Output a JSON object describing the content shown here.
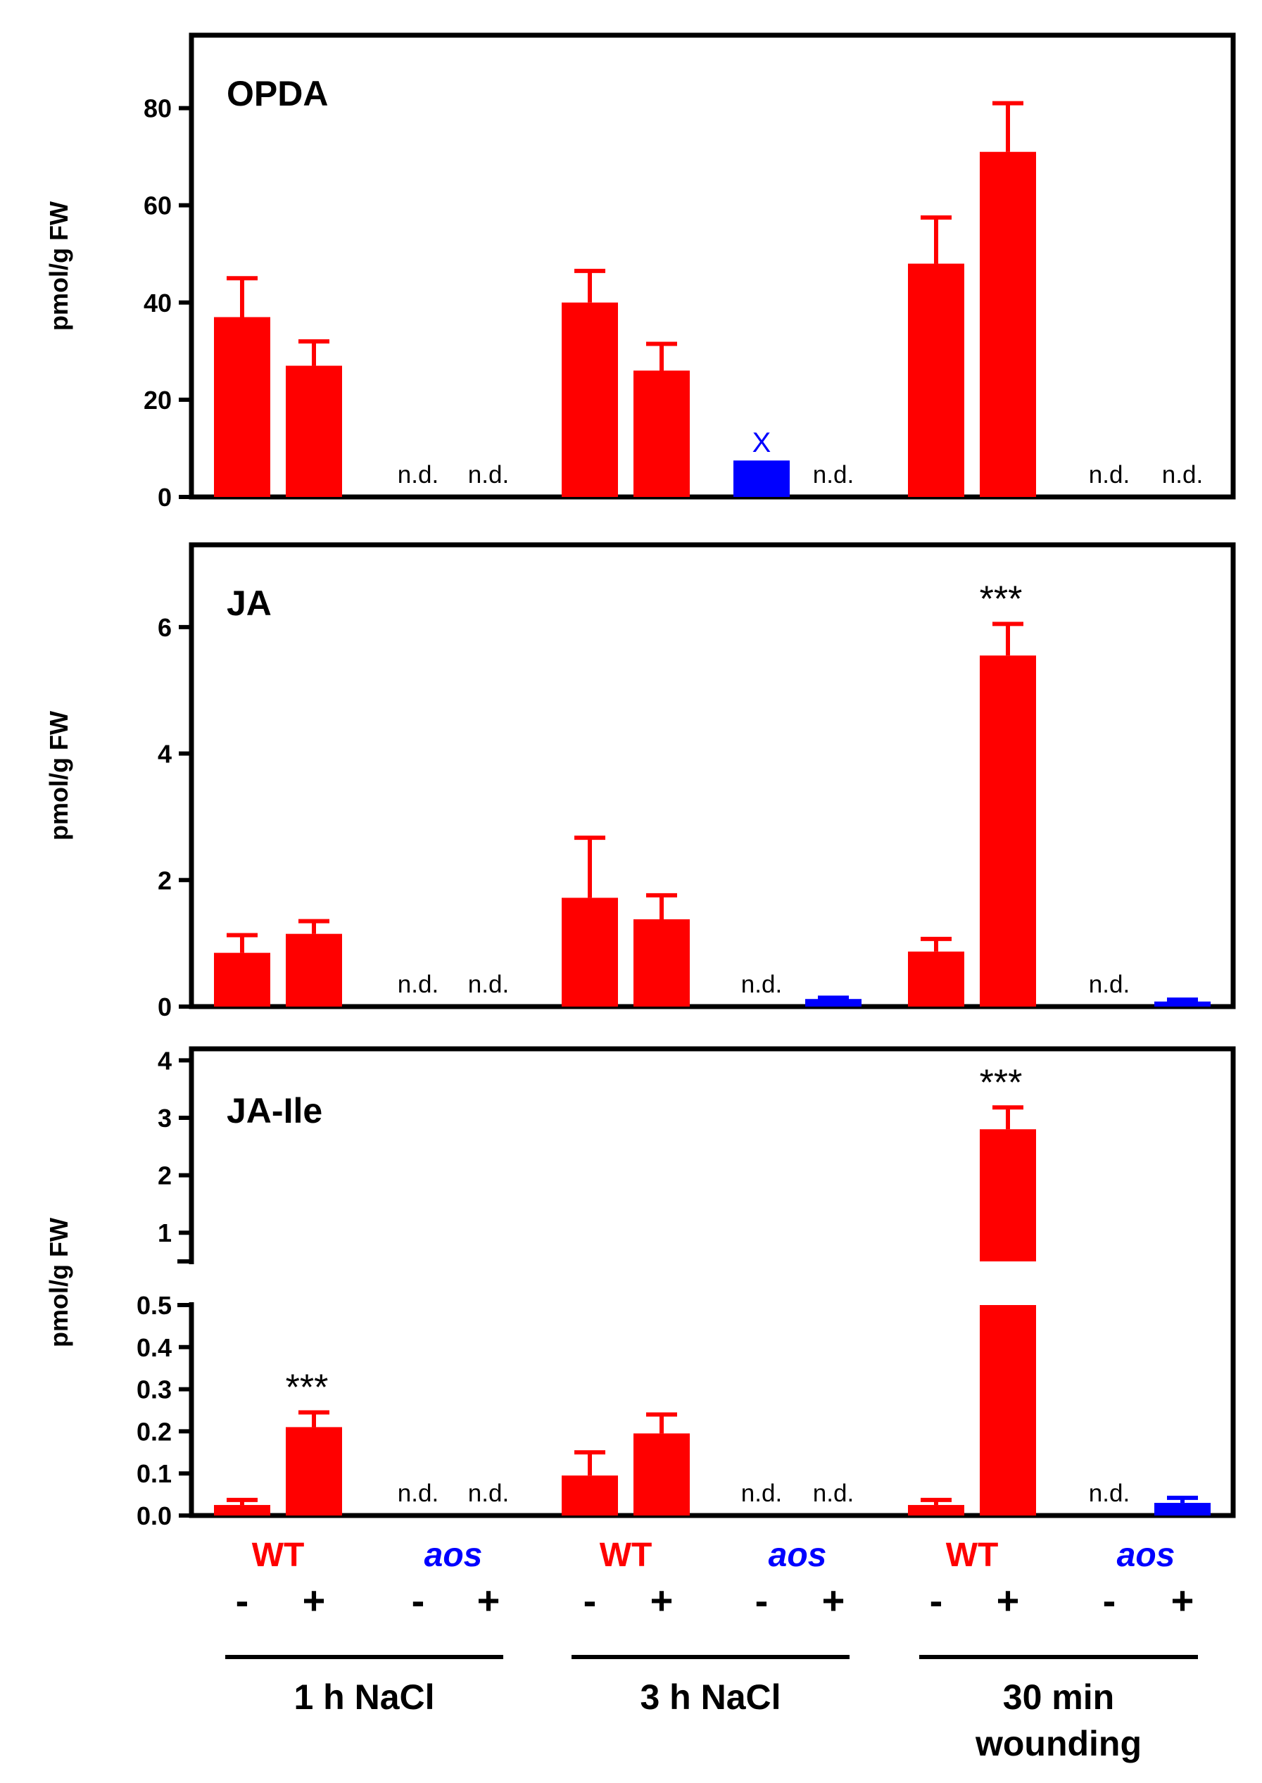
{
  "colors": {
    "wt": "#ff0000",
    "aos": "#0000ff",
    "axis": "#000000"
  },
  "x_axis": {
    "genotypes": [
      {
        "label": "WT",
        "color": "#ff0000",
        "italic": false
      },
      {
        "label": "aos",
        "color": "#0000ff",
        "italic": true
      },
      {
        "label": "WT",
        "color": "#ff0000",
        "italic": false
      },
      {
        "label": "aos",
        "color": "#0000ff",
        "italic": true
      },
      {
        "label": "WT",
        "color": "#ff0000",
        "italic": false
      },
      {
        "label": "aos",
        "color": "#0000ff",
        "italic": true
      }
    ],
    "signs": [
      "-",
      "+",
      "-",
      "+",
      "-",
      "+",
      "-",
      "+",
      "-",
      "+",
      "-",
      "+"
    ],
    "conditions": [
      {
        "lines": [
          "1 h NaCl"
        ]
      },
      {
        "lines": [
          "3 h NaCl"
        ]
      },
      {
        "lines": [
          "30 min",
          "wounding"
        ]
      }
    ]
  },
  "chart_data": [
    {
      "type": "bar",
      "title": "OPDA",
      "ylabel": "pmol/g FW",
      "ylim": [
        0,
        95
      ],
      "yticks": [
        "0",
        "20",
        "40",
        "60",
        "80"
      ],
      "ytick_values": [
        0,
        20,
        40,
        60,
        80
      ],
      "categories": [
        "WT -",
        "WT +",
        "aos -",
        "aos +",
        "WT -",
        "WT +",
        "aos -",
        "aos +",
        "WT -",
        "WT +",
        "aos -",
        "aos +"
      ],
      "values": [
        37,
        27,
        null,
        null,
        40,
        26,
        7.5,
        null,
        48,
        71,
        null,
        null
      ],
      "errors": [
        8,
        5,
        null,
        null,
        6.5,
        5.5,
        null,
        null,
        9.5,
        10,
        null,
        null
      ],
      "colors": [
        "#ff0000",
        "#ff0000",
        "#0000ff",
        "#0000ff",
        "#ff0000",
        "#ff0000",
        "#0000ff",
        "#0000ff",
        "#ff0000",
        "#ff0000",
        "#0000ff",
        "#0000ff"
      ],
      "annotations": [
        "",
        "",
        "n.d.",
        "n.d.",
        "",
        "",
        "X",
        "n.d.",
        "",
        "",
        "n.d.",
        "n.d."
      ]
    },
    {
      "type": "bar",
      "title": "JA",
      "ylabel": "pmol/g FW",
      "ylim": [
        0,
        7.3
      ],
      "yticks": [
        "0",
        "2",
        "4",
        "6"
      ],
      "ytick_values": [
        0,
        2,
        4,
        6
      ],
      "categories": [
        "WT -",
        "WT +",
        "aos -",
        "aos +",
        "WT -",
        "WT +",
        "aos -",
        "aos +",
        "WT -",
        "WT +",
        "aos -",
        "aos +"
      ],
      "values": [
        0.85,
        1.15,
        null,
        null,
        1.72,
        1.38,
        null,
        0.12,
        0.87,
        5.55,
        null,
        0.08
      ],
      "errors": [
        0.28,
        0.2,
        null,
        null,
        0.95,
        0.38,
        null,
        0.02,
        0.2,
        0.5,
        null,
        0.03
      ],
      "colors": [
        "#ff0000",
        "#ff0000",
        "#0000ff",
        "#0000ff",
        "#ff0000",
        "#ff0000",
        "#0000ff",
        "#0000ff",
        "#ff0000",
        "#ff0000",
        "#0000ff",
        "#0000ff"
      ],
      "annotations": [
        "",
        "",
        "n.d.",
        "n.d.",
        "",
        "",
        "n.d.",
        "",
        "",
        "***",
        "n.d.",
        ""
      ]
    },
    {
      "type": "bar",
      "title": "JA-Ile",
      "ylabel": "pmol/g FW",
      "broken_axis": true,
      "ylim_lower": [
        0,
        0.5
      ],
      "ylim_upper": [
        0.5,
        4.2
      ],
      "yticks_lower": [
        "0.0",
        "0.1",
        "0.2",
        "0.3",
        "0.4",
        "0.5"
      ],
      "ytick_values_lower": [
        0,
        0.1,
        0.2,
        0.3,
        0.4,
        0.5
      ],
      "yticks_upper": [
        "1",
        "2",
        "3",
        "4"
      ],
      "ytick_values_upper": [
        1,
        2,
        3,
        4
      ],
      "categories": [
        "WT -",
        "WT +",
        "aos -",
        "aos +",
        "WT -",
        "WT +",
        "aos -",
        "aos +",
        "WT -",
        "WT +",
        "aos -",
        "aos +"
      ],
      "values": [
        0.025,
        0.21,
        null,
        null,
        0.095,
        0.195,
        null,
        null,
        0.025,
        2.8,
        null,
        0.03
      ],
      "errors": [
        0.012,
        0.035,
        null,
        null,
        0.055,
        0.045,
        null,
        null,
        0.012,
        0.38,
        null,
        0.012
      ],
      "colors": [
        "#ff0000",
        "#ff0000",
        "#0000ff",
        "#0000ff",
        "#ff0000",
        "#ff0000",
        "#0000ff",
        "#0000ff",
        "#ff0000",
        "#ff0000",
        "#0000ff",
        "#0000ff"
      ],
      "annotations": [
        "",
        "***",
        "n.d.",
        "n.d.",
        "",
        "",
        "n.d.",
        "n.d.",
        "",
        "***",
        "n.d.",
        ""
      ]
    }
  ]
}
